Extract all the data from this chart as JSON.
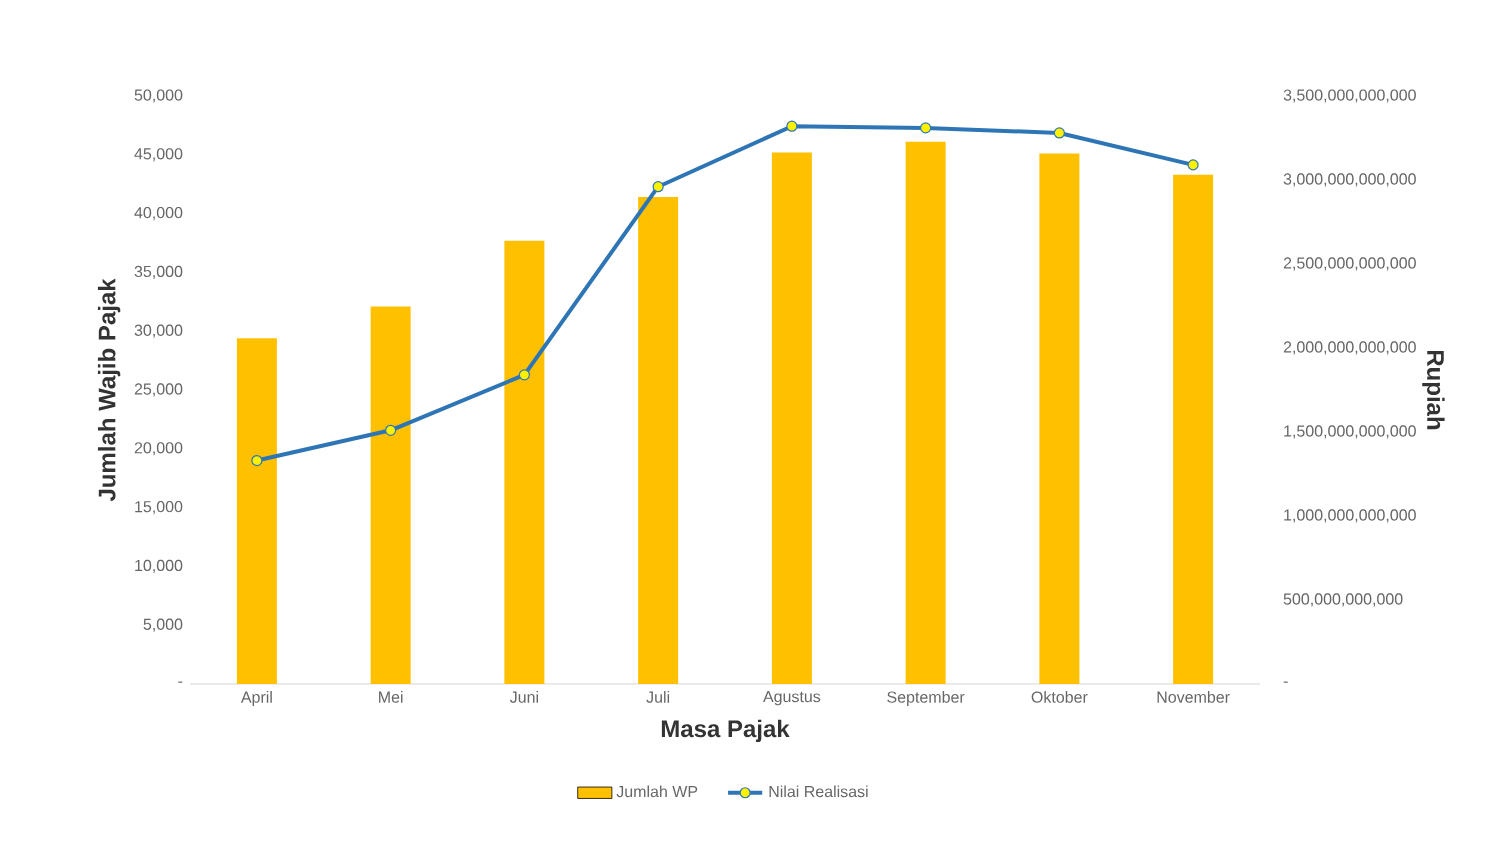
{
  "chart_data": {
    "type": "bar",
    "categories": [
      "April",
      "Mei",
      "Juni",
      "Juli",
      "Agustus",
      "September",
      "Oktober",
      "November"
    ],
    "xlabel": "Masa Pajak",
    "ylabel": "Jumlah Wajib Pajak",
    "y2label": "Rupiah",
    "series": [
      {
        "name": "Jumlah WP",
        "color": "#ffc000",
        "values": [
          29400,
          32100,
          37700,
          41400,
          45200,
          46100,
          45100,
          43300
        ]
      },
      {
        "name": "Nilai Realisasi",
        "type": "line",
        "axis": "y2",
        "color": "#2e75b6",
        "values": [
          1330000000000,
          1510000000000,
          1840000000000,
          2960000000000,
          3320000000000,
          3310000000000,
          3280000000000,
          3090000000000
        ]
      }
    ],
    "ylim": [
      0,
      50000
    ],
    "yticks": [
      {
        "value": 0,
        "label": "-"
      },
      {
        "value": 5000,
        "label": "5,000"
      },
      {
        "value": 10000,
        "label": "10,000"
      },
      {
        "value": 15000,
        "label": "15,000"
      },
      {
        "value": 20000,
        "label": "20,000"
      },
      {
        "value": 25000,
        "label": "25,000"
      },
      {
        "value": 30000,
        "label": "30,000"
      },
      {
        "value": 35000,
        "label": "35,000"
      },
      {
        "value": 40000,
        "label": "40,000"
      },
      {
        "value": 45000,
        "label": "45,000"
      },
      {
        "value": 50000,
        "label": "50,000"
      }
    ],
    "y2lim": [
      0,
      3500000000000
    ],
    "y2ticks": [
      {
        "value": 0,
        "label": "-"
      },
      {
        "value": 500000000000,
        "label": "500,000,000,000"
      },
      {
        "value": 1000000000000,
        "label": "1,000,000,000,000"
      },
      {
        "value": 1500000000000,
        "label": "1,500,000,000,000"
      },
      {
        "value": 2000000000000,
        "label": "2,000,000,000,000"
      },
      {
        "value": 2500000000000,
        "label": "2,500,000,000,000"
      },
      {
        "value": 3000000000000,
        "label": "3,000,000,000,000"
      },
      {
        "value": 3500000000000,
        "label": "3,500,000,000,000"
      }
    ],
    "legend": "bottom",
    "marker": "circle",
    "line_style": "solid"
  }
}
